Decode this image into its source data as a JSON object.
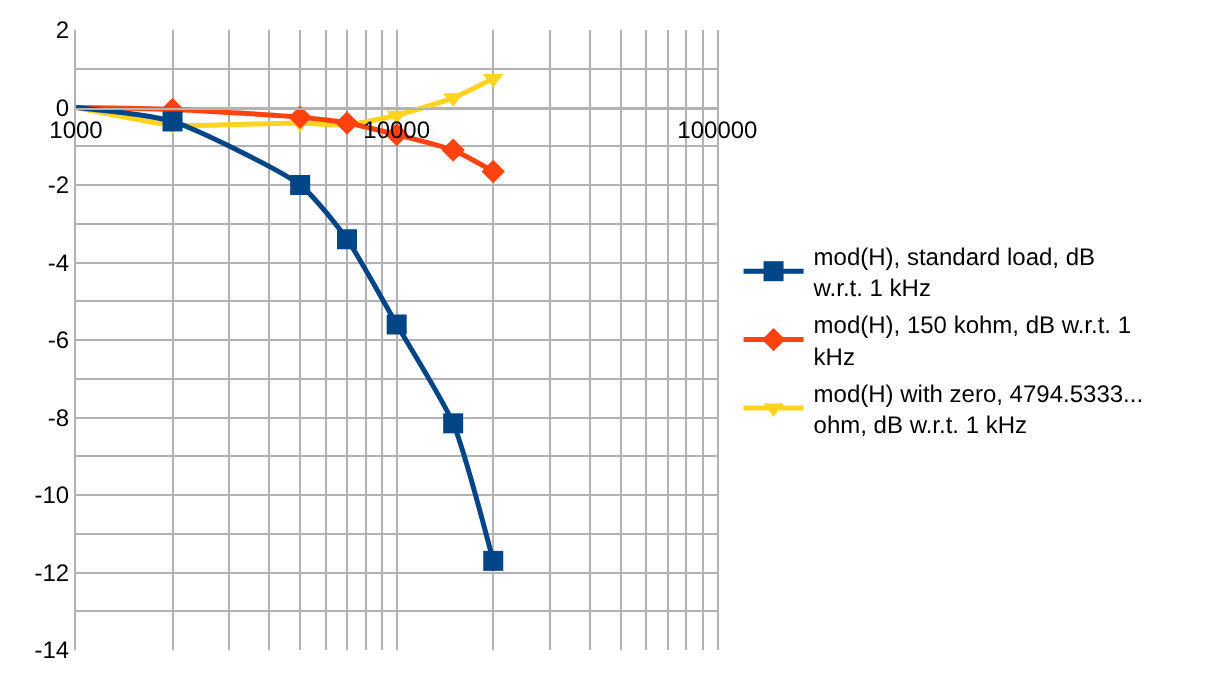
{
  "chart_data": {
    "type": "line",
    "log": "x",
    "grid": true,
    "legend": "right",
    "line_style": "solid",
    "x": [
      1000,
      2000,
      5000,
      7000,
      10000,
      15000,
      20000
    ],
    "xlim": [
      1000,
      100000
    ],
    "xticks": [
      1000,
      {
        "value": 2000,
        "label": null
      },
      {
        "value": 3000,
        "label": null
      },
      {
        "value": 4000,
        "label": null
      },
      {
        "value": 5000,
        "label": null
      },
      {
        "value": 6000,
        "label": null
      },
      {
        "value": 7000,
        "label": null
      },
      {
        "value": 8000,
        "label": null
      },
      {
        "value": 9000,
        "label": null
      },
      10000,
      {
        "value": 20000,
        "label": null
      },
      {
        "value": 30000,
        "label": null
      },
      {
        "value": 40000,
        "label": null
      },
      {
        "value": 50000,
        "label": null
      },
      {
        "value": 60000,
        "label": null
      },
      {
        "value": 70000,
        "label": null
      },
      {
        "value": 80000,
        "label": null
      },
      {
        "value": 90000,
        "label": null
      },
      100000
    ],
    "ylim": [
      -14,
      2
    ],
    "yticks": [
      -14,
      {
        "value": -13,
        "label": null
      },
      -12,
      {
        "value": -11,
        "label": null
      },
      -10,
      {
        "value": -9,
        "label": null
      },
      -8,
      {
        "value": -7,
        "label": null
      },
      -6,
      {
        "value": -5,
        "label": null
      },
      -4,
      {
        "value": -3,
        "label": null
      },
      -2,
      {
        "value": -1,
        "label": null
      },
      0,
      {
        "value": 1,
        "label": null
      },
      2
    ],
    "series": [
      {
        "name": "mod(H), standard load, dB w.r.t. 1 kHz",
        "color": "#004586",
        "marker": "square",
        "values": [
          0,
          -0.36,
          -2.0,
          -3.4,
          -5.6,
          -8.15,
          -11.7
        ]
      },
      {
        "name": "mod(H), 150 kohm, dB w.r.t. 1 kHz",
        "color": "#ff420e",
        "marker": "diamond",
        "values": [
          0,
          -0.05,
          -0.25,
          -0.4,
          -0.7,
          -1.1,
          -1.65
        ]
      },
      {
        "name": "mod(H) with zero, 4794.5333... ohm, dB w.r.t. 1 kHz",
        "color": "#ffd320",
        "marker": "triangle",
        "values": [
          0,
          -0.45,
          -0.4,
          -0.45,
          -0.2,
          0.25,
          0.75
        ]
      }
    ]
  }
}
